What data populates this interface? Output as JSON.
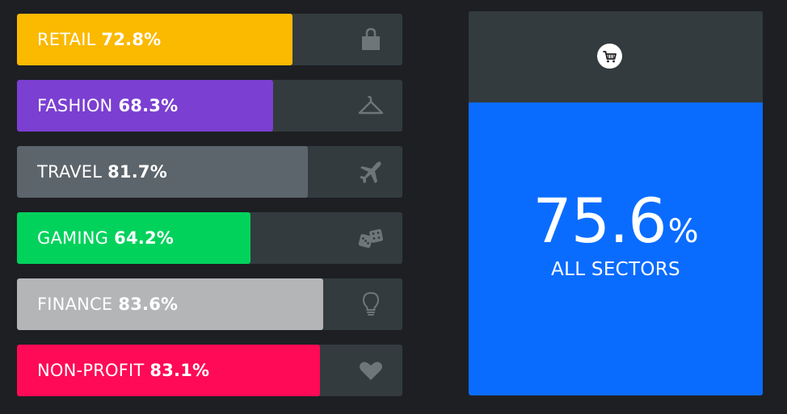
{
  "chart_data": {
    "type": "bar",
    "orientation": "horizontal",
    "categories": [
      "RETAIL",
      "FASHION",
      "TRAVEL",
      "GAMING",
      "FINANCE",
      "NON-PROFIT"
    ],
    "values": [
      72.8,
      68.3,
      81.7,
      64.2,
      83.6,
      83.1
    ],
    "value_labels": [
      "72.8%",
      "68.3%",
      "81.7%",
      "64.2%",
      "83.6%",
      "83.1%"
    ],
    "colors": [
      "#fbb900",
      "#7b3fd1",
      "#5c656b",
      "#00d25c",
      "#b3b5b6",
      "#ff0a56"
    ],
    "icons": [
      "shopping-bag-icon",
      "hanger-icon",
      "airplane-icon",
      "dice-icon",
      "lightbulb-icon",
      "heart-icon"
    ],
    "xlim": [
      0,
      100
    ]
  },
  "summary": {
    "value": "75.6",
    "unit": "%",
    "caption": "ALL SECTORS",
    "icon": "shopping-cart-icon",
    "color": "#0a6cff"
  }
}
